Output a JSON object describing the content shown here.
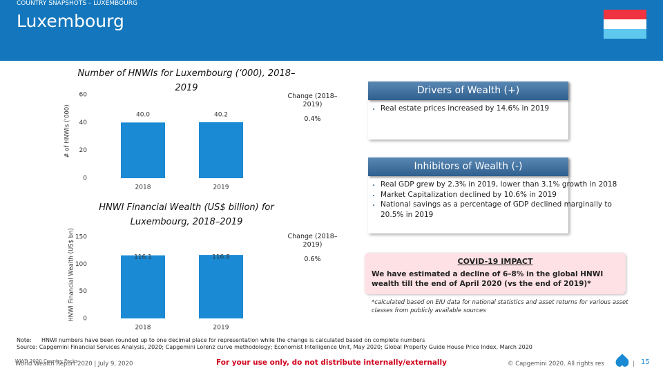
{
  "header": {
    "kicker": "COUNTRY SNAPSHOTS – LUXEMBOURG",
    "title": "Luxembourg"
  },
  "chart_data": [
    {
      "type": "bar",
      "title": "Number of HNWIs for Luxembourg (‘000), 2018–2019",
      "y_label": "# of HNWIs (‘000)",
      "categories": [
        "2018",
        "2019"
      ],
      "values": [
        40.0,
        40.2
      ],
      "value_labels": [
        "40.0",
        "40.2"
      ],
      "color": "#1a8ad4",
      "ylim": [
        0,
        60
      ],
      "yticks": [
        0,
        20,
        40,
        60
      ],
      "change_title": "Change (2018–2019)",
      "change_value": "0.4%"
    },
    {
      "type": "bar",
      "title": "HNWI Financial Wealth (US$ billion) for Luxembourg, 2018–2019",
      "y_label": "HNWI Financial Wealth (US$ bn)",
      "categories": [
        "2018",
        "2019"
      ],
      "values": [
        116.1,
        116.8
      ],
      "color": "#1a8ad4",
      "ylim": [
        0,
        150
      ],
      "yticks": [
        0,
        50,
        100,
        150
      ],
      "change_title": "Change (2018–2019)",
      "change_value": "0.6%"
    }
  ],
  "drivers": {
    "title": "Drivers of Wealth (+)",
    "items": [
      "Real estate prices increased by 14.6% in 2019"
    ]
  },
  "inhibitors": {
    "title": "Inhibitors of Wealth (-)",
    "items": [
      "Real GDP grew by 2.3% in 2019, lower than 3.1% growth in 2018",
      "Market Capitalization declined by 10.6% in 2019",
      "National savings as a percentage of GDP declined marginally to 20.5% in 2019"
    ]
  },
  "covid": {
    "title": "COVID-19 IMPACT",
    "text": "We have estimated a decline of 6–8% in the global HNWI wealth till the end of April 2020 (vs the end of 2019)*"
  },
  "footnote": "*calculated based on EIU data for national statistics and asset returns for various asset classes from publicly available sources",
  "note": {
    "label": "Note:",
    "text": "HNWI numbers have been rounded up to one decimal place for representation while the change is calculated based on complete numbers"
  },
  "source": "Source: Capgemini Financial Services Analysis, 2020; Capgemini Lorenz curve methodology; Economist Intelligence Unit, May 2020; Global Property Guide House Price Index, March 2020",
  "footer": {
    "overlay": "WWR 2020 Country Packs",
    "report": "World Wealth Report 2020 | July 9, 2020",
    "notice": "For your use only, do not distribute internally/externally",
    "copyright": "© Capgemini 2020. All rights res",
    "page": "15"
  }
}
